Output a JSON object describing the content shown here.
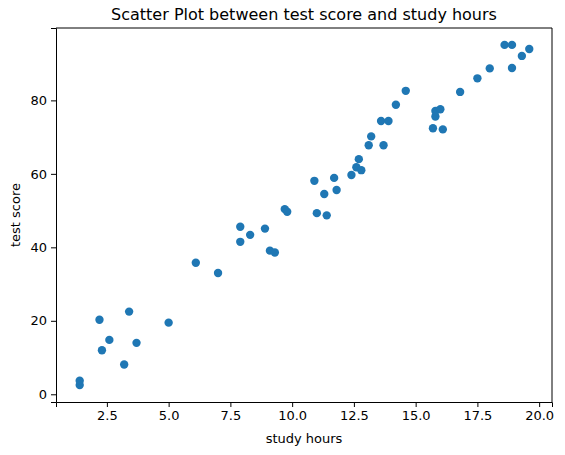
{
  "chart_data": {
    "type": "scatter",
    "title": "Scatter Plot between test score and study hours",
    "x_label": "study hours",
    "y_label": "test score",
    "color": "#1f77b4",
    "marker": "circle",
    "grid": false,
    "x": [
      1.4,
      1.4,
      2.2,
      2.3,
      2.6,
      3.2,
      3.4,
      3.7,
      5.0,
      6.1,
      7.0,
      7.9,
      7.9,
      8.3,
      8.9,
      9.1,
      9.3,
      9.7,
      9.8,
      10.9,
      11.0,
      11.3,
      11.4,
      11.7,
      11.8,
      12.4,
      12.6,
      12.7,
      12.8,
      13.1,
      13.2,
      13.6,
      13.7,
      13.9,
      14.2,
      14.6,
      15.7,
      15.8,
      15.8,
      16.0,
      16.1,
      16.8,
      17.5,
      18.0,
      18.6,
      18.9,
      18.9,
      19.3,
      19.6
    ],
    "values": [
      2.5,
      3.7,
      20.3,
      12.0,
      14.8,
      8.1,
      22.5,
      14.0,
      19.5,
      35.8,
      33.0,
      41.5,
      45.6,
      43.4,
      45.1,
      39.1,
      38.6,
      50.4,
      49.7,
      58.1,
      49.3,
      54.5,
      48.7,
      58.9,
      55.6,
      59.7,
      61.8,
      64.0,
      61.0,
      67.8,
      70.2,
      74.4,
      67.8,
      74.4,
      78.8,
      82.6,
      72.4,
      75.6,
      77.1,
      77.6,
      72.1,
      82.3,
      86.0,
      88.7,
      95.1,
      95.1,
      88.8,
      92.1,
      94.0
    ],
    "xlim": [
      0.44,
      20.52
    ],
    "ylim": [
      -2.1,
      99.7
    ],
    "xticks": [
      2.5,
      {
        "value": 5,
        "label": "5.0"
      },
      7.5,
      {
        "value": 10,
        "label": "10.0"
      },
      12.5,
      {
        "value": 15,
        "label": "15.0"
      },
      17.5,
      {
        "value": 20,
        "label": "20.0"
      }
    ],
    "yticks": [
      0,
      20,
      40,
      60,
      80
    ]
  }
}
